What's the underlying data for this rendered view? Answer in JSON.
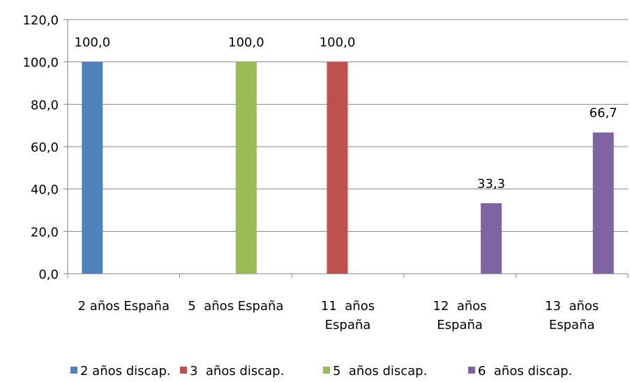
{
  "chart_data": {
    "type": "bar",
    "categories": [
      "2 años España",
      "5  años España",
      "11  años España",
      "12  años España",
      "13  años España"
    ],
    "series": [
      {
        "name": "2 años discap.",
        "color": "#4f81bd",
        "values": [
          100,
          null,
          null,
          null,
          null
        ],
        "value_labels": [
          "100,0",
          null,
          null,
          null,
          null
        ]
      },
      {
        "name": "3  años discap.",
        "color": "#c0504d",
        "values": [
          null,
          null,
          100,
          null,
          null
        ],
        "value_labels": [
          null,
          null,
          "100,0",
          null,
          null
        ]
      },
      {
        "name": "5  años discap.",
        "color": "#9bbb59",
        "values": [
          null,
          100,
          null,
          null,
          null
        ],
        "value_labels": [
          null,
          "100,0",
          null,
          null,
          null
        ]
      },
      {
        "name": "6  años discap.",
        "color": "#8064a2",
        "values": [
          null,
          null,
          null,
          33.3,
          66.7
        ],
        "value_labels": [
          null,
          null,
          null,
          "33,3",
          "66,7"
        ]
      }
    ],
    "ylim": [
      0,
      120
    ],
    "yticks": [
      {
        "value": 0,
        "label": "0,0"
      },
      {
        "value": 20,
        "label": "20,0"
      },
      {
        "value": 40,
        "label": "40,0"
      },
      {
        "value": 60,
        "label": "60,0"
      },
      {
        "value": 80,
        "label": "80,0"
      },
      {
        "value": 100,
        "label": "100,0"
      },
      {
        "value": 120,
        "label": "120,0"
      }
    ],
    "grid": true,
    "legend": "bottom"
  }
}
